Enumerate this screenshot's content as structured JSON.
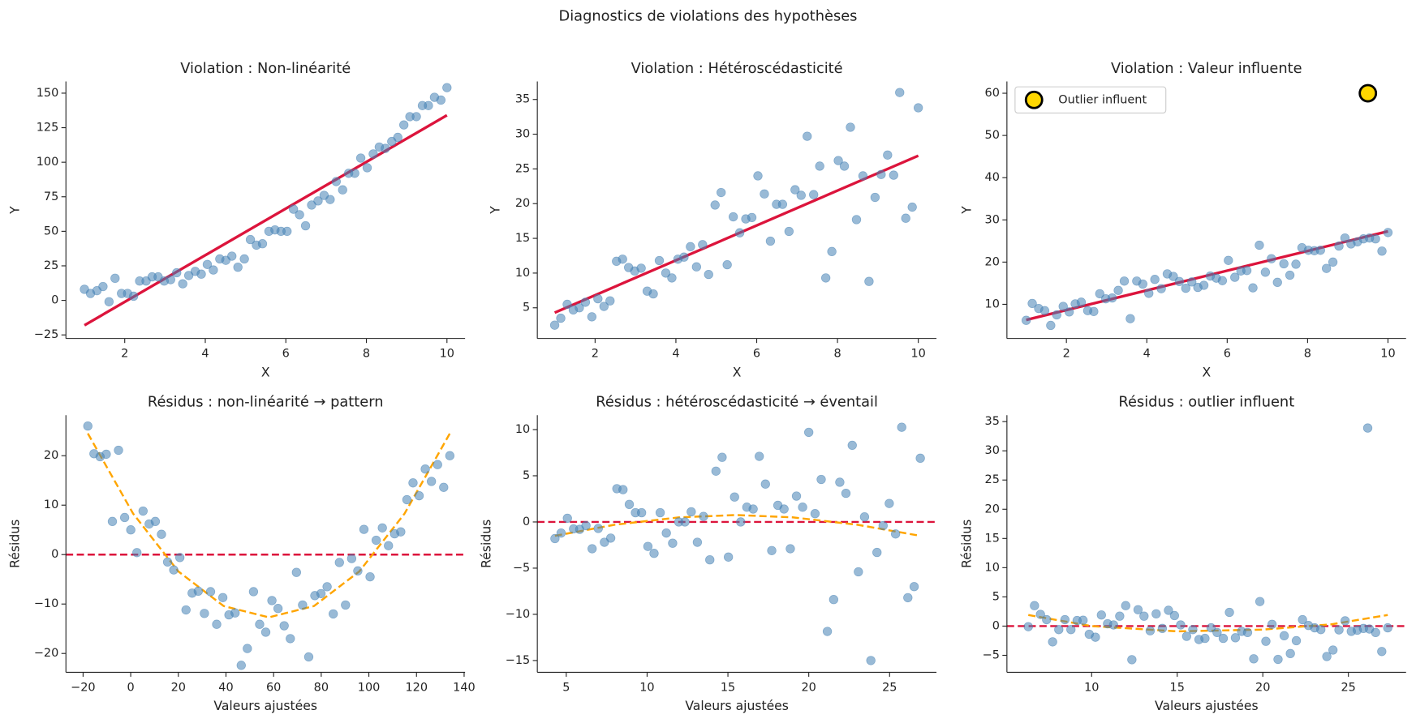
{
  "title": "Diagnostics de violations des hypothèses",
  "chart_data": [
    {
      "type": "scatter",
      "title": "Violation : Non-linéarité",
      "x_label": "X",
      "y_label": "Y",
      "xlim": [
        0.54,
        10.45
      ],
      "ylim": [
        -27.6,
        158.5
      ],
      "xticks": [
        2,
        4,
        6,
        8,
        10
      ],
      "yticks": [
        {
          "value": -25,
          "label": "−25"
        },
        0,
        25,
        50,
        75,
        100,
        125,
        150
      ],
      "series": [
        {
          "kind": "scatter",
          "color": "#4682b4",
          "alpha": 0.55,
          "x": [
            1.0,
            1.15,
            1.31,
            1.46,
            1.61,
            1.76,
            1.92,
            2.07,
            2.22,
            2.37,
            2.53,
            2.68,
            2.83,
            2.98,
            3.14,
            3.29,
            3.44,
            3.59,
            3.75,
            3.9,
            4.05,
            4.2,
            4.36,
            4.51,
            4.66,
            4.81,
            4.97,
            5.12,
            5.27,
            5.42,
            5.58,
            5.73,
            5.88,
            6.03,
            6.19,
            6.34,
            6.49,
            6.64,
            6.8,
            6.95,
            7.1,
            7.25,
            7.41,
            7.56,
            7.71,
            7.86,
            8.02,
            8.17,
            8.32,
            8.47,
            8.63,
            8.78,
            8.93,
            9.08,
            9.24,
            9.39,
            9.54,
            9.69,
            9.85,
            10.0
          ],
          "values": [
            8,
            5,
            7,
            10,
            -1,
            16,
            5,
            5,
            3,
            14,
            14,
            17,
            17,
            14,
            15,
            20,
            12,
            18,
            21,
            19,
            26,
            22,
            30,
            29,
            32,
            24,
            30,
            44,
            40,
            41,
            50,
            51,
            50,
            50,
            66,
            62,
            54,
            69,
            72,
            76,
            73,
            86,
            80,
            92,
            92,
            103,
            96,
            106,
            111,
            110,
            115,
            118,
            127,
            133,
            133,
            141,
            141,
            147,
            145,
            154
          ]
        },
        {
          "kind": "line",
          "color": "#dc143c",
          "width": 3,
          "x": [
            1,
            10
          ],
          "values": [
            -18,
            134
          ]
        }
      ]
    },
    {
      "type": "scatter",
      "title": "Violation : Hétéroscédasticité",
      "x_label": "X",
      "y_label": "Y",
      "xlim": [
        0.57,
        10.45
      ],
      "ylim": [
        0.58,
        37.6
      ],
      "xticks": [
        2,
        4,
        6,
        8,
        10
      ],
      "yticks": [
        5,
        10,
        15,
        20,
        25,
        30,
        35
      ],
      "series": [
        {
          "kind": "scatter",
          "color": "#4682b4",
          "alpha": 0.55,
          "x": [
            1.0,
            1.15,
            1.31,
            1.46,
            1.61,
            1.76,
            1.92,
            2.07,
            2.22,
            2.37,
            2.53,
            2.68,
            2.83,
            2.98,
            3.14,
            3.29,
            3.44,
            3.59,
            3.75,
            3.9,
            4.05,
            4.2,
            4.36,
            4.51,
            4.66,
            4.81,
            4.97,
            5.12,
            5.27,
            5.42,
            5.58,
            5.73,
            5.88,
            6.03,
            6.19,
            6.34,
            6.49,
            6.64,
            6.8,
            6.95,
            7.1,
            7.25,
            7.41,
            7.56,
            7.71,
            7.86,
            8.02,
            8.17,
            8.32,
            8.47,
            8.63,
            8.78,
            8.93,
            9.08,
            9.24,
            9.39,
            9.54,
            9.69,
            9.85,
            10.0
          ],
          "values": [
            2.5,
            3.5,
            5.5,
            4.7,
            5,
            5.8,
            3.7,
            6.3,
            5.2,
            6,
            11.7,
            12,
            10.8,
            10.3,
            10.7,
            7.4,
            7,
            11.8,
            10,
            9.3,
            12,
            12.3,
            13.8,
            10.9,
            14.1,
            9.8,
            19.8,
            21.6,
            11.2,
            18.1,
            15.8,
            17.8,
            18,
            24,
            21.4,
            14.6,
            19.9,
            19.9,
            16,
            22,
            21.2,
            29.7,
            21.3,
            25.4,
            9.3,
            13.1,
            26.2,
            25.4,
            31,
            17.7,
            24,
            8.8,
            20.9,
            24.2,
            27,
            24.1,
            36,
            17.9,
            19.5,
            33.8
          ]
        },
        {
          "kind": "line",
          "color": "#dc143c",
          "width": 3,
          "x": [
            1,
            10
          ],
          "values": [
            4.3,
            26.9
          ]
        }
      ]
    },
    {
      "type": "scatter",
      "title": "Violation : Valeur influente",
      "x_label": "X",
      "y_label": "Y",
      "xlim": [
        0.52,
        10.45
      ],
      "ylim": [
        1.9,
        62.8
      ],
      "xticks": [
        2,
        4,
        6,
        8,
        10
      ],
      "yticks": [
        10,
        20,
        30,
        40,
        50,
        60
      ],
      "legend": "upper left",
      "series": [
        {
          "kind": "scatter",
          "color": "#4682b4",
          "alpha": 0.55,
          "x": [
            1.0,
            1.15,
            1.31,
            1.46,
            1.61,
            1.76,
            1.92,
            2.07,
            2.22,
            2.37,
            2.53,
            2.68,
            2.83,
            2.98,
            3.14,
            3.29,
            3.44,
            3.59,
            3.75,
            3.9,
            4.05,
            4.2,
            4.36,
            4.51,
            4.66,
            4.81,
            4.97,
            5.12,
            5.27,
            5.42,
            5.58,
            5.73,
            5.88,
            6.03,
            6.19,
            6.34,
            6.49,
            6.64,
            6.8,
            6.95,
            7.1,
            7.25,
            7.41,
            7.56,
            7.71,
            7.86,
            8.02,
            8.17,
            8.32,
            8.47,
            8.63,
            8.78,
            8.93,
            9.08,
            9.24,
            9.39,
            9.54,
            9.69,
            9.85,
            10.0
          ],
          "values": [
            6.2,
            10.2,
            9,
            8.5,
            5,
            7.5,
            9.5,
            8.2,
            10.1,
            10.5,
            8.5,
            8.3,
            12.5,
            11.3,
            11.5,
            13.3,
            15.5,
            6.6,
            15.5,
            14.8,
            12.6,
            15.9,
            13.7,
            17.2,
            16.6,
            15.4,
            13.8,
            15.3,
            14,
            14.5,
            16.7,
            16.2,
            15.6,
            20.4,
            16.4,
            17.9,
            18,
            13.9,
            24,
            17.6,
            20.8,
            15.2,
            19.6,
            16.9,
            19.5,
            23.4,
            22.8,
            22.7,
            22.8,
            18.5,
            20,
            23.8,
            25.7,
            24.3,
            24.8,
            25.5,
            25.7,
            25.5,
            22.6,
            27
          ]
        },
        {
          "kind": "line",
          "color": "#dc143c",
          "width": 3,
          "x": [
            1,
            10
          ],
          "values": [
            6.3,
            27.3
          ]
        },
        {
          "kind": "scatter",
          "name": "Outlier influent",
          "color": "#ffd700",
          "edgecolor": "#000000",
          "alpha": 1,
          "size": "large",
          "x": [
            9.5
          ],
          "values": [
            60
          ]
        }
      ]
    },
    {
      "type": "scatter",
      "title": "Résidus : non-linéarité → pattern",
      "x_label": "Valeurs ajustées",
      "y_label": "Résidus",
      "xlim": [
        -27.2,
        140.4
      ],
      "ylim": [
        -23.8,
        28.2
      ],
      "xticks": [
        {
          "value": -20,
          "label": "−20"
        },
        0,
        20,
        40,
        60,
        80,
        100,
        120,
        140
      ],
      "yticks": [
        {
          "value": -20,
          "label": "−20"
        },
        {
          "value": -10,
          "label": "−10"
        },
        0,
        10,
        20
      ],
      "hline": 0,
      "hline_color": "#dc143c",
      "series": [
        {
          "kind": "scatter",
          "color": "#4682b4",
          "alpha": 0.55,
          "x": [
            -18,
            -15.42,
            -12.85,
            -10.27,
            -7.69,
            -5.12,
            -2.54,
            0.03,
            2.61,
            5.19,
            7.76,
            10.34,
            12.92,
            15.49,
            18.07,
            20.64,
            23.22,
            25.8,
            28.37,
            30.95,
            33.53,
            36.1,
            38.68,
            41.25,
            43.83,
            46.41,
            48.98,
            51.56,
            54.14,
            56.71,
            59.29,
            61.86,
            64.44,
            67.02,
            69.59,
            72.17,
            74.75,
            77.32,
            79.9,
            82.47,
            85.05,
            87.63,
            90.2,
            92.78,
            95.36,
            97.93,
            100.51,
            103.08,
            105.66,
            108.24,
            110.81,
            113.39,
            115.97,
            118.54,
            121.12,
            123.69,
            126.27,
            128.85,
            131.42,
            134.0
          ],
          "values": [
            26,
            20.4,
            19.8,
            20.3,
            6.7,
            21.1,
            7.5,
            5,
            0.4,
            8.8,
            6.2,
            6.7,
            4.1,
            -1.5,
            -3.1,
            -0.6,
            -11.2,
            -7.8,
            -7.4,
            -11.9,
            -7.5,
            -14.1,
            -8.7,
            -12.2,
            -11.8,
            -22.4,
            -19,
            -7.5,
            -14.1,
            -15.7,
            -9.3,
            -10.9,
            -14.4,
            -17,
            -3.6,
            -10.2,
            -20.7,
            -8.3,
            -7.9,
            -6.5,
            -12,
            -1.6,
            -10.2,
            -0.8,
            -3.3,
            5.1,
            -4.5,
            2.9,
            5.4,
            1.8,
            4.2,
            4.6,
            11.1,
            14.5,
            11.9,
            17.3,
            14.8,
            18.2,
            13.6,
            20
          ]
        },
        {
          "kind": "line",
          "style": "dashed",
          "color": "#ffa500",
          "width": 2.2,
          "x": [
            -18,
            1,
            20,
            39,
            58,
            77,
            96,
            115,
            134
          ],
          "values": [
            24.5,
            8.3,
            -3.4,
            -10.4,
            -12.7,
            -10.4,
            -3.4,
            8.3,
            24.5
          ]
        }
      ]
    },
    {
      "type": "scatter",
      "title": "Résidus : hétéroscédasticité → éventail",
      "x_label": "Valeurs ajustées",
      "y_label": "Résidus",
      "xlim": [
        3.21,
        27.9
      ],
      "ylim": [
        -16.27,
        11.56
      ],
      "xticks": [
        5,
        10,
        15,
        20,
        25
      ],
      "yticks": [
        {
          "value": -15,
          "label": "−15"
        },
        {
          "value": -10,
          "label": "−10"
        },
        {
          "value": -5,
          "label": "−5"
        },
        0,
        5,
        10
      ],
      "hline": 0,
      "hline_color": "#dc143c",
      "series": [
        {
          "kind": "scatter",
          "color": "#4682b4",
          "alpha": 0.55,
          "x": [
            4.3,
            4.68,
            5.07,
            5.45,
            5.83,
            6.22,
            6.6,
            6.98,
            7.36,
            7.75,
            8.13,
            8.51,
            8.9,
            9.28,
            9.66,
            10.05,
            10.43,
            10.81,
            11.19,
            11.58,
            11.96,
            12.34,
            12.73,
            13.11,
            13.49,
            13.88,
            14.26,
            14.64,
            15.03,
            15.41,
            15.79,
            16.17,
            16.56,
            16.94,
            17.32,
            17.71,
            18.09,
            18.47,
            18.86,
            19.24,
            19.62,
            20.0,
            20.39,
            20.77,
            21.15,
            21.54,
            21.92,
            22.3,
            22.69,
            23.07,
            23.45,
            23.84,
            24.22,
            24.6,
            24.98,
            25.37,
            25.75,
            26.13,
            26.52,
            26.9
          ],
          "values": [
            -1.8,
            -1.2,
            0.4,
            -0.75,
            -0.8,
            -0.4,
            -2.9,
            -0.7,
            -2.2,
            -1.75,
            3.6,
            3.5,
            1.9,
            1.0,
            1.0,
            -2.65,
            -3.4,
            1.0,
            -1.2,
            -2.3,
            0,
            0,
            1.1,
            -2.2,
            0.6,
            -4.1,
            5.5,
            7.0,
            -3.8,
            2.7,
            0,
            1.6,
            1.4,
            7.1,
            4.1,
            -3.1,
            1.8,
            1.4,
            -2.9,
            2.8,
            1.6,
            9.7,
            0.9,
            4.6,
            -11.85,
            -8.4,
            4.3,
            3.1,
            8.3,
            -5.4,
            0.55,
            -15,
            -3.3,
            -0.4,
            2.0,
            -1.3,
            10.25,
            -8.2,
            -7.0,
            6.9
          ]
        },
        {
          "kind": "line",
          "style": "dashed",
          "color": "#ffa500",
          "width": 2.2,
          "x": [
            4.3,
            8,
            12,
            15.5,
            19,
            23,
            26.9
          ],
          "values": [
            -1.5,
            -0.3,
            0.5,
            0.75,
            0.5,
            -0.3,
            -1.5
          ]
        }
      ]
    },
    {
      "type": "scatter",
      "title": "Résidus : outlier influent",
      "x_label": "Valeurs ajustées",
      "y_label": "Résidus",
      "xlim": [
        5.05,
        28.37
      ],
      "ylim": [
        -7.9,
        36.1
      ],
      "xticks": [
        10,
        15,
        20,
        25
      ],
      "yticks": [
        {
          "value": -5,
          "label": "−5"
        },
        0,
        5,
        10,
        15,
        20,
        25,
        30,
        35
      ],
      "hline": 0,
      "hline_color": "#dc143c",
      "series": [
        {
          "kind": "scatter",
          "color": "#4682b4",
          "alpha": 0.55,
          "x": [
            6.3,
            6.66,
            7.01,
            7.37,
            7.72,
            8.08,
            8.44,
            8.79,
            9.15,
            9.5,
            9.86,
            10.22,
            10.57,
            10.93,
            11.28,
            11.64,
            11.99,
            12.35,
            12.71,
            13.06,
            13.42,
            13.77,
            14.13,
            14.49,
            14.84,
            15.2,
            15.55,
            15.91,
            16.27,
            16.62,
            16.98,
            17.33,
            17.69,
            18.05,
            18.4,
            18.76,
            19.11,
            19.47,
            19.83,
            20.18,
            20.54,
            20.89,
            21.25,
            21.61,
            21.96,
            22.32,
            22.67,
            23.03,
            23.39,
            23.74,
            24.1,
            24.45,
            24.81,
            25.17,
            25.52,
            25.88,
            26.23,
            26.59,
            26.95,
            27.3,
            26.13
          ],
          "values": [
            -0.1,
            3.5,
            2.0,
            1.1,
            -2.7,
            -0.6,
            1.1,
            -0.6,
            0.95,
            1.0,
            -1.4,
            -1.9,
            1.9,
            0.4,
            0.2,
            1.7,
            3.5,
            -5.75,
            2.8,
            1.7,
            -0.8,
            2.1,
            -0.4,
            2.7,
            1.8,
            0.2,
            -1.75,
            -0.6,
            -2.3,
            -2.1,
            -0.3,
            -1.1,
            -2.1,
            2.35,
            -2.0,
            -0.9,
            -1.1,
            -5.6,
            4.2,
            -2.6,
            0.3,
            -5.7,
            -1.65,
            -4.7,
            -2.5,
            1.1,
            0.1,
            -0.3,
            -0.6,
            -5.2,
            -4.1,
            -0.65,
            0.9,
            -0.9,
            -0.7,
            -0.4,
            -0.5,
            -1.1,
            -4.35,
            -0.3,
            33.9
          ]
        },
        {
          "kind": "line",
          "style": "dashed",
          "color": "#ffa500",
          "width": 2.2,
          "x": [
            6.3,
            10,
            15,
            20,
            24,
            27.3
          ],
          "values": [
            1.9,
            0,
            -0.9,
            -0.6,
            0.3,
            1.9
          ]
        }
      ]
    }
  ]
}
